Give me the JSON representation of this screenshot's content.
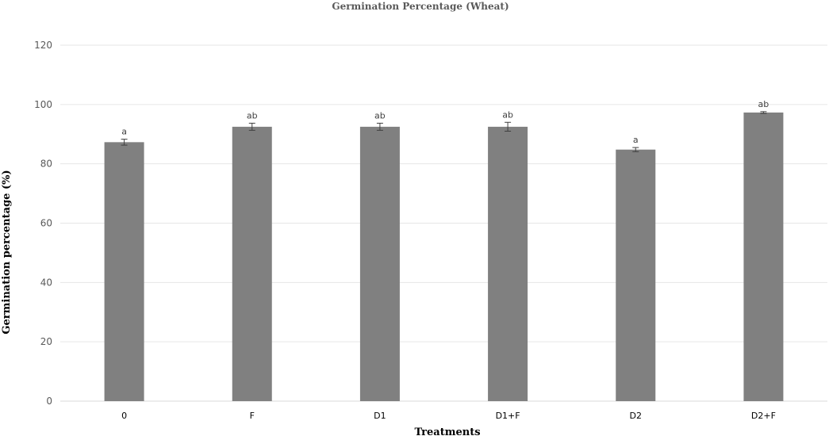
{
  "chart_data": {
    "type": "bar",
    "title": "Germination Percentage (Wheat)",
    "xlabel": "Treatments",
    "ylabel": "Germination   percentage   (%)",
    "categories": [
      "0",
      "F",
      "D1",
      "D1+F",
      "D2",
      "D2+F"
    ],
    "values": [
      87.3,
      92.5,
      92.5,
      92.5,
      84.8,
      97.3
    ],
    "errors": [
      1.0,
      1.2,
      1.2,
      1.5,
      0.7,
      0.3
    ],
    "significance": [
      "a",
      "ab",
      "ab",
      "ab",
      "a",
      "ab"
    ],
    "ylim": [
      0,
      120
    ],
    "yticks": [
      "0",
      "20",
      "40",
      "60",
      "80",
      "100",
      "120"
    ],
    "grid": true,
    "legend": "none",
    "colors": {
      "bar": "#808080",
      "grid": "#e6e6e6",
      "error": "#404040"
    }
  }
}
